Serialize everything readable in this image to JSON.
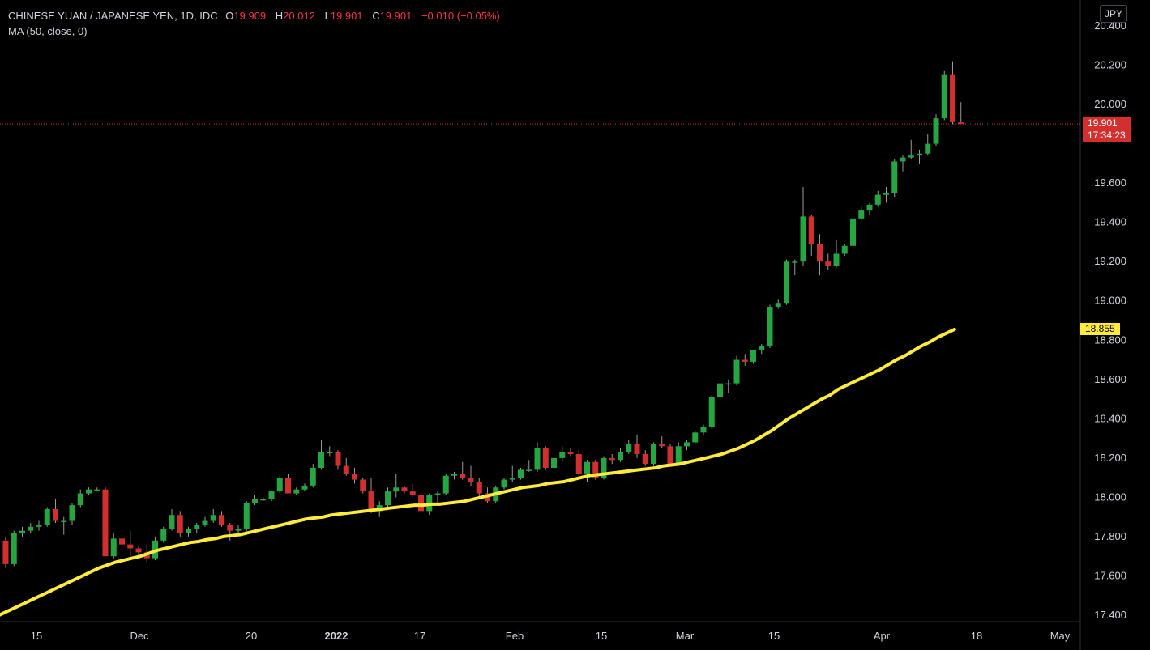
{
  "header": {
    "symbol": "CHINESE YUAN / JAPANESE YEN, 1D, IDC",
    "open_label": "O",
    "open": "19.909",
    "high_label": "H",
    "high": "20.012",
    "low_label": "L",
    "low": "19.901",
    "close_label": "C",
    "close": "19.901",
    "change": "−0.010 (−0.05%)",
    "indicator": "MA (50, close, 0)"
  },
  "currency_button": "JPY",
  "price_tag": {
    "price": "19.901",
    "countdown": "17:34:23"
  },
  "ma_tag": "18.855",
  "colors": {
    "up": "#26a641",
    "down": "#d32f2f",
    "ma": "#ffeb3b",
    "text": "#d1d4dc",
    "price_line": "#d32f2f"
  },
  "chart_data": {
    "type": "candlestick",
    "y_ticks": [
      "17.400",
      "17.600",
      "17.800",
      "18.000",
      "18.200",
      "18.400",
      "18.600",
      "18.800",
      "19.000",
      "19.200",
      "19.400",
      "19.600",
      "20.000",
      "20.200",
      "20.400"
    ],
    "ylim": [
      17.4,
      20.4
    ],
    "x_ticks": [
      "15",
      "Dec",
      "20",
      "2022",
      "17",
      "Feb",
      "15",
      "Mar",
      "15",
      "Apr",
      "18",
      "May"
    ],
    "series": [
      {
        "name": "CNY/JPY",
        "candles": [
          [
            17.78,
            17.8,
            17.64,
            17.66
          ],
          [
            17.66,
            17.83,
            17.65,
            17.82
          ],
          [
            17.82,
            17.85,
            17.8,
            17.83
          ],
          [
            17.83,
            17.87,
            17.82,
            17.85
          ],
          [
            17.85,
            17.88,
            17.83,
            17.86
          ],
          [
            17.86,
            17.95,
            17.85,
            17.94
          ],
          [
            17.94,
            17.99,
            17.87,
            17.88
          ],
          [
            17.88,
            17.9,
            17.81,
            17.88
          ],
          [
            17.88,
            17.97,
            17.86,
            17.96
          ],
          [
            17.96,
            18.04,
            17.95,
            18.02
          ],
          [
            18.02,
            18.05,
            18.01,
            18.04
          ],
          [
            18.04,
            18.05,
            18.03,
            18.04
          ],
          [
            18.04,
            18.05,
            17.7,
            17.7
          ],
          [
            17.7,
            17.82,
            17.69,
            17.79
          ],
          [
            17.79,
            17.83,
            17.72,
            17.76
          ],
          [
            17.76,
            17.83,
            17.7,
            17.74
          ],
          [
            17.74,
            17.75,
            17.69,
            17.72
          ],
          [
            17.72,
            17.76,
            17.67,
            17.69
          ],
          [
            17.69,
            17.8,
            17.68,
            17.78
          ],
          [
            17.78,
            17.85,
            17.77,
            17.84
          ],
          [
            17.84,
            17.94,
            17.83,
            17.91
          ],
          [
            17.91,
            17.93,
            17.8,
            17.82
          ],
          [
            17.82,
            17.85,
            17.8,
            17.84
          ],
          [
            17.84,
            17.87,
            17.82,
            17.86
          ],
          [
            17.86,
            17.9,
            17.85,
            17.88
          ],
          [
            17.88,
            17.94,
            17.87,
            17.91
          ],
          [
            17.91,
            17.93,
            17.85,
            17.86
          ],
          [
            17.86,
            17.87,
            17.78,
            17.83
          ],
          [
            17.83,
            17.86,
            17.81,
            17.84
          ],
          [
            17.84,
            17.98,
            17.83,
            17.97
          ],
          [
            17.97,
            18.01,
            17.96,
            17.99
          ],
          [
            17.99,
            18.0,
            17.98,
            17.99
          ],
          [
            17.99,
            18.03,
            17.98,
            18.03
          ],
          [
            18.03,
            18.11,
            18.02,
            18.1
          ],
          [
            18.1,
            18.12,
            18.02,
            18.02
          ],
          [
            18.02,
            18.05,
            18.01,
            18.04
          ],
          [
            18.04,
            18.07,
            18.03,
            18.06
          ],
          [
            18.06,
            18.17,
            18.05,
            18.15
          ],
          [
            18.15,
            18.29,
            18.14,
            18.23
          ],
          [
            18.23,
            18.26,
            18.21,
            18.23
          ],
          [
            18.23,
            18.24,
            18.14,
            18.16
          ],
          [
            18.16,
            18.2,
            18.11,
            18.12
          ],
          [
            18.12,
            18.15,
            18.07,
            18.09
          ],
          [
            18.09,
            18.1,
            18.02,
            18.03
          ],
          [
            18.03,
            18.1,
            17.92,
            17.93
          ],
          [
            17.93,
            17.98,
            17.9,
            17.96
          ],
          [
            17.96,
            18.05,
            17.95,
            18.03
          ],
          [
            18.03,
            18.12,
            18.0,
            18.05
          ],
          [
            18.05,
            18.06,
            18.02,
            18.03
          ],
          [
            18.03,
            18.07,
            18.0,
            18.01
          ],
          [
            18.01,
            18.03,
            17.92,
            17.93
          ],
          [
            17.93,
            18.02,
            17.91,
            18.01
          ],
          [
            18.01,
            18.03,
            17.96,
            18.02
          ],
          [
            18.02,
            18.12,
            18.01,
            18.11
          ],
          [
            18.11,
            18.13,
            18.09,
            18.12
          ],
          [
            18.12,
            18.18,
            18.09,
            18.1
          ],
          [
            18.1,
            18.16,
            18.06,
            18.08
          ],
          [
            18.08,
            18.1,
            18.0,
            18.02
          ],
          [
            18.02,
            18.05,
            17.97,
            17.98
          ],
          [
            17.98,
            18.06,
            17.97,
            18.05
          ],
          [
            18.05,
            18.1,
            18.04,
            18.09
          ],
          [
            18.09,
            18.16,
            18.08,
            18.1
          ],
          [
            18.1,
            18.15,
            18.09,
            18.14
          ],
          [
            18.14,
            18.19,
            18.13,
            18.14
          ],
          [
            18.14,
            18.28,
            18.13,
            18.25
          ],
          [
            18.25,
            18.26,
            18.14,
            18.15
          ],
          [
            18.15,
            18.22,
            18.14,
            18.2
          ],
          [
            18.2,
            18.26,
            18.18,
            18.23
          ],
          [
            18.23,
            18.25,
            18.21,
            18.22
          ],
          [
            18.22,
            18.24,
            18.11,
            18.12
          ],
          [
            18.12,
            18.19,
            18.08,
            18.18
          ],
          [
            18.18,
            18.19,
            18.09,
            18.1
          ],
          [
            18.1,
            18.21,
            18.09,
            18.2
          ],
          [
            18.2,
            18.22,
            18.17,
            18.19
          ],
          [
            18.19,
            18.25,
            18.18,
            18.23
          ],
          [
            18.23,
            18.29,
            18.22,
            18.27
          ],
          [
            18.27,
            18.32,
            18.2,
            18.22
          ],
          [
            18.22,
            18.24,
            18.16,
            18.17
          ],
          [
            18.17,
            18.28,
            18.16,
            18.27
          ],
          [
            18.27,
            18.31,
            18.25,
            18.26
          ],
          [
            18.26,
            18.27,
            18.16,
            18.17
          ],
          [
            18.17,
            18.28,
            18.16,
            18.26
          ],
          [
            18.26,
            18.29,
            18.24,
            18.28
          ],
          [
            18.28,
            18.34,
            18.27,
            18.33
          ],
          [
            18.33,
            18.37,
            18.32,
            18.36
          ],
          [
            18.36,
            18.52,
            18.35,
            18.51
          ],
          [
            18.51,
            18.59,
            18.49,
            18.58
          ],
          [
            18.58,
            18.6,
            18.53,
            18.58
          ],
          [
            18.58,
            18.72,
            18.57,
            18.7
          ],
          [
            18.7,
            18.73,
            18.67,
            18.69
          ],
          [
            18.69,
            18.75,
            18.68,
            18.75
          ],
          [
            18.75,
            18.78,
            18.73,
            18.77
          ],
          [
            18.77,
            18.98,
            18.76,
            18.97
          ],
          [
            18.97,
            19.01,
            18.96,
            18.99
          ],
          [
            18.99,
            19.21,
            18.98,
            19.2
          ],
          [
            19.2,
            19.21,
            19.13,
            19.2
          ],
          [
            19.2,
            19.58,
            19.18,
            19.43
          ],
          [
            19.43,
            19.44,
            19.23,
            19.29
          ],
          [
            19.29,
            19.34,
            19.13,
            19.2
          ],
          [
            19.2,
            19.24,
            19.16,
            19.18
          ],
          [
            19.18,
            19.31,
            19.17,
            19.24
          ],
          [
            19.24,
            19.29,
            19.23,
            19.28
          ],
          [
            19.28,
            19.42,
            19.27,
            19.42
          ],
          [
            19.42,
            19.48,
            19.41,
            19.46
          ],
          [
            19.46,
            19.5,
            19.44,
            19.49
          ],
          [
            19.49,
            19.56,
            19.48,
            19.54
          ],
          [
            19.54,
            19.58,
            19.5,
            19.55
          ],
          [
            19.55,
            19.72,
            19.53,
            19.71
          ],
          [
            19.71,
            19.74,
            19.66,
            19.73
          ],
          [
            19.73,
            19.82,
            19.72,
            19.74
          ],
          [
            19.74,
            19.77,
            19.7,
            19.75
          ],
          [
            19.75,
            19.85,
            19.74,
            19.8
          ],
          [
            19.8,
            19.95,
            19.79,
            19.93
          ],
          [
            19.93,
            20.17,
            19.92,
            20.15
          ],
          [
            20.15,
            20.22,
            19.9,
            19.91
          ],
          [
            19.909,
            20.012,
            19.901,
            19.901
          ]
        ]
      },
      {
        "name": "MA (50, close, 0)",
        "values": [
          17.4,
          17.42,
          17.44,
          17.46,
          17.48,
          17.5,
          17.52,
          17.54,
          17.56,
          17.58,
          17.6,
          17.62,
          17.64,
          17.655,
          17.67,
          17.68,
          17.69,
          17.7,
          17.715,
          17.73,
          17.74,
          17.75,
          17.76,
          17.77,
          17.775,
          17.785,
          17.79,
          17.8,
          17.805,
          17.81,
          17.82,
          17.83,
          17.84,
          17.85,
          17.86,
          17.87,
          17.88,
          17.89,
          17.895,
          17.9,
          17.91,
          17.915,
          17.92,
          17.925,
          17.93,
          17.935,
          17.94,
          17.945,
          17.95,
          17.955,
          17.96,
          17.96,
          17.965,
          17.965,
          17.97,
          17.975,
          17.98,
          17.99,
          18.0,
          18.01,
          18.02,
          18.03,
          18.04,
          18.05,
          18.055,
          18.06,
          18.07,
          18.075,
          18.08,
          18.09,
          18.1,
          18.11,
          18.115,
          18.12,
          18.125,
          18.13,
          18.135,
          18.14,
          18.145,
          18.15,
          18.16,
          18.165,
          18.17,
          18.18,
          18.19,
          18.2,
          18.21,
          18.22,
          18.235,
          18.25,
          18.27,
          18.29,
          18.315,
          18.34,
          18.37,
          18.4,
          18.425,
          18.45,
          18.475,
          18.5,
          18.52,
          18.55,
          18.57,
          18.59,
          18.61,
          18.63,
          18.65,
          18.675,
          18.7,
          18.72,
          18.745,
          18.77,
          18.79,
          18.815,
          18.835,
          18.855
        ]
      }
    ]
  }
}
